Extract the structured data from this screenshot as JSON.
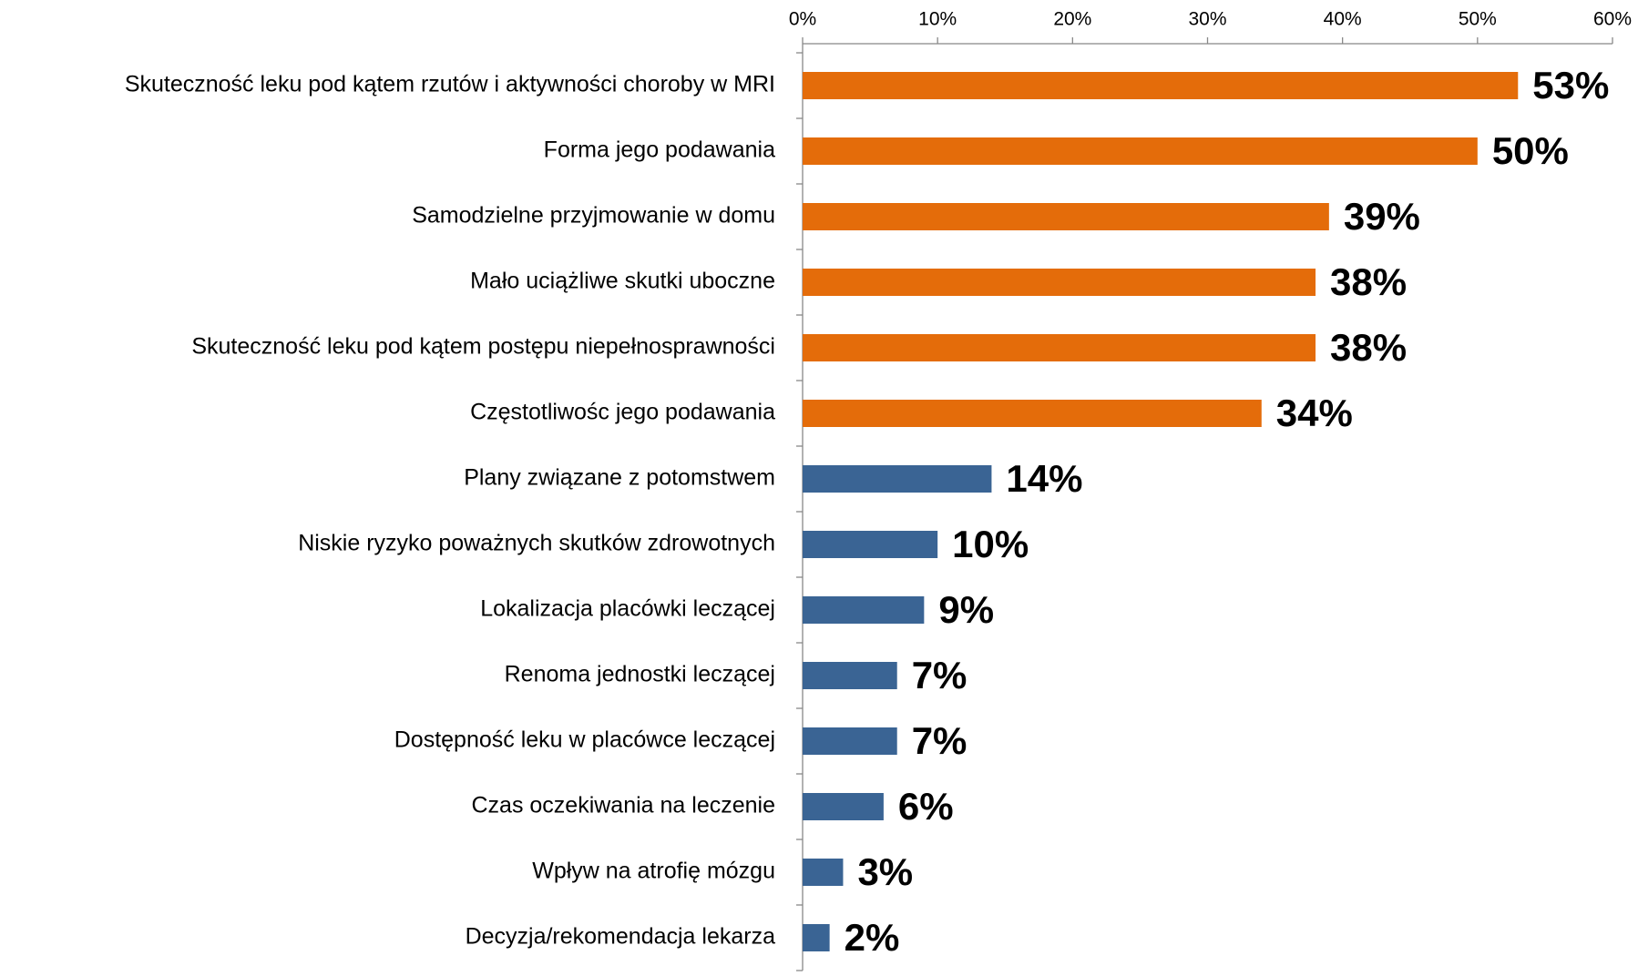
{
  "chart_data": {
    "type": "hbar",
    "categories": [
      "Skuteczność leku pod kątem rzutów i aktywności choroby w MRI",
      "Forma jego podawania",
      "Samodzielne przyjmowanie w domu",
      "Mało uciążliwe skutki uboczne",
      "Skuteczność leku pod kątem postępu niepełnosprawności",
      "Częstotliwośc jego podawania",
      "Plany związane z potomstwem",
      "Niskie ryzyko poważnych skutków zdrowotnych",
      "Lokalizacja placówki leczącej",
      "Renoma jednostki leczącej",
      "Dostępność leku w placówce leczącej",
      "Czas oczekiwania na leczenie",
      "Wpływ na atrofię mózgu",
      "Decyzja/rekomendacja lekarza"
    ],
    "values": [
      53,
      50,
      39,
      38,
      38,
      34,
      14,
      10,
      9,
      7,
      7,
      6,
      3,
      2
    ],
    "value_labels": [
      "53%",
      "50%",
      "39%",
      "38%",
      "38%",
      "34%",
      "14%",
      "10%",
      "9%",
      "7%",
      "7%",
      "6%",
      "3%",
      "2%"
    ],
    "colors": [
      "#e46c0a",
      "#e46c0a",
      "#e46c0a",
      "#e46c0a",
      "#e46c0a",
      "#e46c0a",
      "#3a6494",
      "#3a6494",
      "#3a6494",
      "#3a6494",
      "#3a6494",
      "#3a6494",
      "#3a6494",
      "#3a6494"
    ],
    "xlim": [
      0,
      60
    ],
    "xticks": [
      {
        "value": 0,
        "label": "0%"
      },
      {
        "value": 10,
        "label": "10%"
      },
      {
        "value": 20,
        "label": "20%"
      },
      {
        "value": 30,
        "label": "30%"
      },
      {
        "value": 40,
        "label": "40%"
      },
      {
        "value": 50,
        "label": "50%"
      },
      {
        "value": 60,
        "label": "60%"
      }
    ],
    "grid": false
  }
}
